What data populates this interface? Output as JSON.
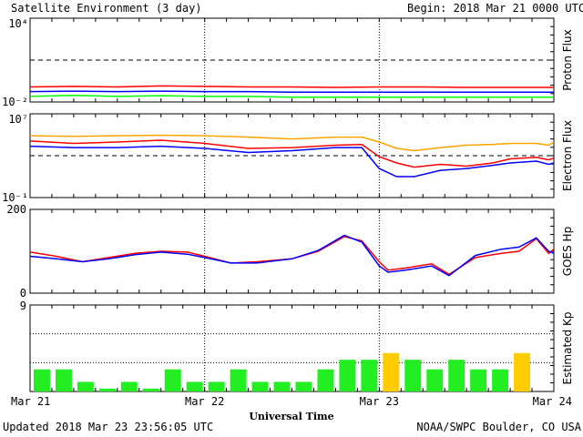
{
  "header": {
    "title": "Satellite Environment (3 day)",
    "begin": "Begin:  2018 Mar 21 0000 UTC"
  },
  "footer": {
    "updated": "Updated 2018 Mar 23 23:56:05 UTC",
    "credit": "NOAA/SWPC Boulder, CO USA"
  },
  "xaxis": {
    "title": "Universal Time",
    "ticks": [
      "Mar 21",
      "Mar 22",
      "Mar 23",
      "Mar 24"
    ]
  },
  "colors": {
    "red": "#ff0000",
    "blue": "#0000ff",
    "green": "#00ff00",
    "orange": "#ffa500",
    "kp_green": "#22ee22",
    "kp_yellow": "#ffcc00"
  },
  "chart_data": [
    {
      "type": "line",
      "panel": "proton",
      "ylabel": "Proton Flux",
      "yscale": "log",
      "ylim": [
        0.01,
        10000
      ],
      "ytick_labels": [
        "10⁴",
        "10⁻²"
      ],
      "reference_line": 10,
      "x": [
        0,
        0.25,
        0.5,
        0.75,
        1.0,
        1.25,
        1.5,
        1.75,
        2.0,
        2.25,
        2.5,
        2.75,
        3.0
      ],
      "series": [
        {
          "color": "red",
          "values": [
            0.12,
            0.13,
            0.12,
            0.14,
            0.13,
            0.12,
            0.12,
            0.11,
            0.12,
            0.12,
            0.11,
            0.11,
            0.11
          ]
        },
        {
          "color": "blue",
          "values": [
            0.055,
            0.06,
            0.055,
            0.06,
            0.055,
            0.055,
            0.05,
            0.05,
            0.05,
            0.05,
            0.05,
            0.05,
            0.05
          ]
        },
        {
          "color": "green",
          "values": [
            0.025,
            0.03,
            0.025,
            0.028,
            0.025,
            0.025,
            0.022,
            0.022,
            0.022,
            0.022,
            0.022,
            0.022,
            0.022
          ]
        }
      ]
    },
    {
      "type": "line",
      "panel": "electron",
      "ylabel": "Electron Flux",
      "yscale": "log",
      "ylim": [
        0.1,
        10000000
      ],
      "ytick_labels": [
        "10⁷",
        "10⁻¹"
      ],
      "reference_line": 1000,
      "x": [
        0,
        0.25,
        0.5,
        0.75,
        1.0,
        1.25,
        1.5,
        1.75,
        1.9,
        2.0,
        2.1,
        2.2,
        2.35,
        2.5,
        2.65,
        2.75,
        2.9,
        2.97,
        3.0
      ],
      "series": [
        {
          "color": "orange",
          "values": [
            80000,
            70000,
            80000,
            90000,
            80000,
            60000,
            40000,
            60000,
            60000,
            20000,
            5000,
            3000,
            6000,
            10000,
            12000,
            15000,
            15000,
            10000,
            20000
          ]
        },
        {
          "color": "red",
          "values": [
            25000,
            15000,
            20000,
            30000,
            15000,
            5000,
            6000,
            10000,
            12000,
            800,
            200,
            80,
            150,
            100,
            200,
            500,
            700,
            400,
            600
          ]
        },
        {
          "color": "blue",
          "values": [
            8000,
            6000,
            6000,
            8000,
            5000,
            2000,
            3000,
            6000,
            6000,
            60,
            10,
            10,
            40,
            60,
            120,
            200,
            300,
            150,
            200
          ]
        }
      ]
    },
    {
      "type": "line",
      "panel": "goes_hp",
      "ylabel": "GOES Hp",
      "ylim": [
        0,
        200
      ],
      "yticks": [
        0,
        200
      ],
      "x": [
        0,
        0.15,
        0.3,
        0.45,
        0.6,
        0.75,
        0.9,
        1.0,
        1.15,
        1.3,
        1.5,
        1.65,
        1.8,
        1.9,
        2.0,
        2.05,
        2.15,
        2.3,
        2.4,
        2.55,
        2.7,
        2.8,
        2.9,
        2.97,
        3.0
      ],
      "series": [
        {
          "color": "red",
          "values": [
            98,
            88,
            75,
            85,
            95,
            100,
            98,
            88,
            72,
            75,
            82,
            100,
            135,
            125,
            75,
            55,
            60,
            70,
            45,
            85,
            95,
            100,
            130,
            95,
            105
          ]
        },
        {
          "color": "blue",
          "values": [
            88,
            82,
            75,
            82,
            92,
            98,
            93,
            85,
            72,
            72,
            82,
            102,
            138,
            122,
            65,
            50,
            55,
            65,
            42,
            90,
            105,
            110,
            132,
            100,
            95
          ]
        }
      ]
    },
    {
      "type": "bar",
      "panel": "kp",
      "ylabel": "Estimated Kp",
      "ylim": [
        0,
        9
      ],
      "yticks": [
        9
      ],
      "bar_width_hours": 3,
      "values": [
        2.3,
        2.3,
        1,
        0.3,
        1,
        0.3,
        2.3,
        1,
        1,
        2.3,
        1,
        1,
        1,
        2.3,
        3.3,
        3.3,
        4,
        3.3,
        2.3,
        3.3,
        2.3,
        2.3,
        4,
        0
      ],
      "bar_colors": [
        "green",
        "green",
        "green",
        "green",
        "green",
        "green",
        "green",
        "green",
        "green",
        "green",
        "green",
        "green",
        "green",
        "green",
        "green",
        "green",
        "yellow",
        "green",
        "green",
        "green",
        "green",
        "green",
        "yellow",
        "green"
      ]
    }
  ]
}
